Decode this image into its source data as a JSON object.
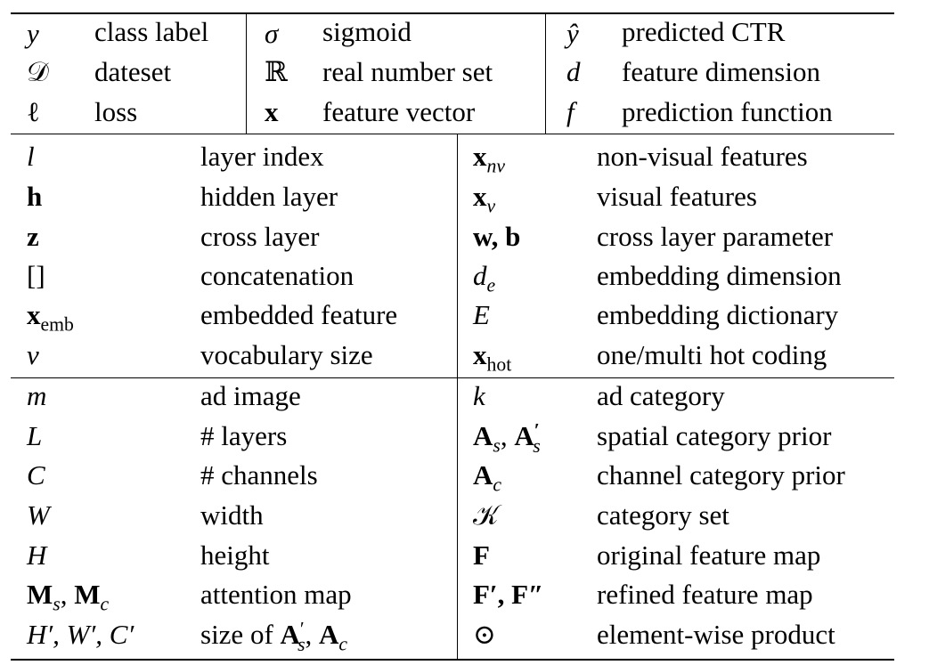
{
  "top_section": {
    "col1": [
      {
        "symbol": "y",
        "desc": "class label"
      },
      {
        "symbol": "𝒟",
        "desc": "dateset"
      },
      {
        "symbol": "ℓ",
        "desc": "loss"
      }
    ],
    "col2": [
      {
        "symbol": "σ",
        "desc": "sigmoid"
      },
      {
        "symbol": "ℝ",
        "desc": "real number set"
      },
      {
        "symbol": "x",
        "desc": "feature vector"
      }
    ],
    "col3": [
      {
        "symbol": "ŷ",
        "desc": "predicted CTR"
      },
      {
        "symbol": "d",
        "desc": "feature dimension"
      },
      {
        "symbol": "f",
        "desc": "prediction function"
      }
    ]
  },
  "middle_section": {
    "left": [
      {
        "symbol": "l",
        "desc": "layer index"
      },
      {
        "symbol": "h",
        "desc": "hidden layer"
      },
      {
        "symbol": "z",
        "desc": "cross layer"
      },
      {
        "symbol": "[]",
        "desc": "concatenation"
      },
      {
        "symbol": "x",
        "sub": "emb",
        "desc": "embedded feature"
      },
      {
        "symbol": "v",
        "desc": "vocabulary size"
      }
    ],
    "right": [
      {
        "symbol": "x",
        "sub": "nv",
        "desc": "non-visual features"
      },
      {
        "symbol": "x",
        "sub": "v",
        "desc": "visual features"
      },
      {
        "symbol": "w, b",
        "desc": "cross layer parameter"
      },
      {
        "symbol": "d",
        "sub": "e",
        "desc": "embedding dimension"
      },
      {
        "symbol": "E",
        "desc": "embedding dictionary"
      },
      {
        "symbol": "x",
        "sub": "hot",
        "desc": "one/multi hot coding"
      }
    ]
  },
  "bottom_section": {
    "left": [
      {
        "symbol": "m",
        "desc": "ad image"
      },
      {
        "symbol": "L",
        "desc": "# layers"
      },
      {
        "symbol": "C",
        "desc": "# channels"
      },
      {
        "symbol": "W",
        "desc": "width"
      },
      {
        "symbol": "H",
        "desc": "height"
      },
      {
        "symbol": "M",
        "sub": "s",
        "symbol2": "M",
        "sub2": "c",
        "desc": "attention map"
      },
      {
        "symbol": "H′, W′, C′",
        "desc_prefix": "size of ",
        "desc_sym": "A",
        "desc_sub": "s",
        "desc_sup": "′",
        "desc_sep": ", ",
        "desc_sym2": "A",
        "desc_sub2": "c"
      }
    ],
    "right": [
      {
        "symbol": "k",
        "desc": "ad category"
      },
      {
        "symbol": "A",
        "sub": "s",
        "symbol2": "A",
        "sub2": "s",
        "sup2": "′",
        "desc": "spatial category prior"
      },
      {
        "symbol": "A",
        "sub": "c",
        "desc": "channel category prior"
      },
      {
        "symbol": "𝒦",
        "desc": "category set"
      },
      {
        "symbol": "F",
        "desc": "original feature map"
      },
      {
        "symbol": "F′, F″",
        "desc": "refined feature map"
      },
      {
        "symbol": "⊙",
        "desc": "element-wise product"
      }
    ]
  }
}
